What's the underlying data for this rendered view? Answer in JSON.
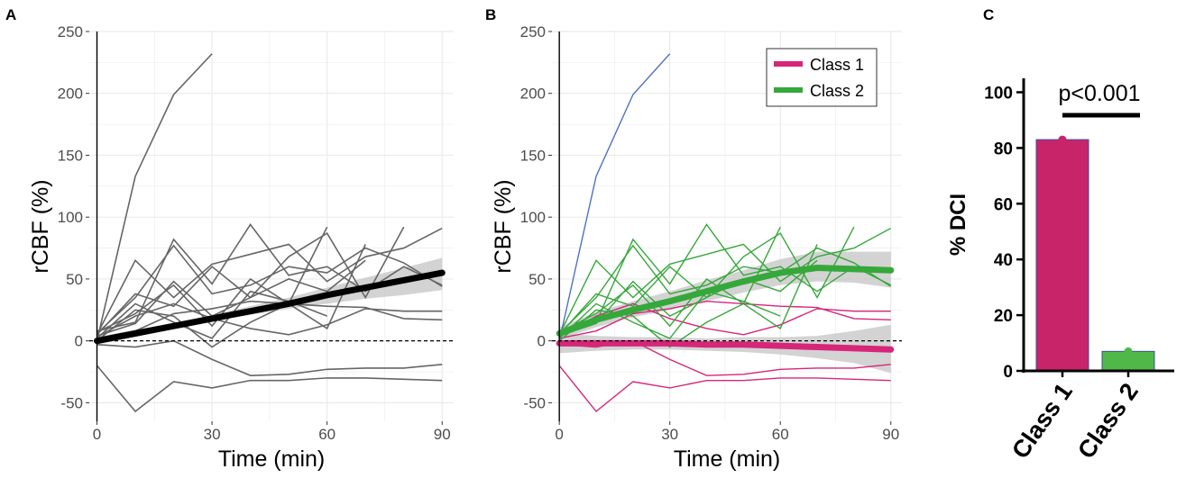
{
  "colors": {
    "grey_line": "#666666",
    "trend_black": "#000000",
    "class1": "#d6267a",
    "class2": "#35a83a",
    "outlier_blue": "#4f72c4",
    "ribbon": "#c8c8c8",
    "grid": "#ebebeb",
    "bar_class1": "#c8246a",
    "bar_class2": "#4fb848"
  },
  "chart_data": [
    {
      "panel": "A",
      "type": "line",
      "xlabel": "Time (min)",
      "ylabel": "rCBF (%)",
      "xlim": [
        -2,
        93
      ],
      "ylim": [
        -65,
        250
      ],
      "xticks": [
        0,
        30,
        60,
        90
      ],
      "yticks": [
        -50,
        0,
        50,
        100,
        150,
        200,
        250
      ],
      "grid": true,
      "reference_line_y": 0,
      "individual_series": [
        {
          "x": [
            0,
            10,
            20,
            30
          ],
          "y": [
            0,
            133,
            199,
            232
          ]
        },
        {
          "x": [
            0,
            10,
            20,
            30,
            40,
            50,
            60,
            70,
            80,
            90
          ],
          "y": [
            -20,
            -57,
            -33,
            -38,
            -32,
            -32,
            -30,
            -30,
            -31,
            -32
          ]
        },
        {
          "x": [
            0,
            10,
            20,
            30,
            40,
            50,
            60,
            70,
            80,
            90
          ],
          "y": [
            -3,
            -5,
            0,
            -15,
            -28,
            -27,
            -23,
            -22,
            -22,
            -19
          ]
        },
        {
          "x": [
            0,
            10,
            20,
            30,
            40,
            50,
            60,
            70,
            80,
            90
          ],
          "y": [
            2,
            8,
            22,
            26,
            32,
            30,
            28,
            27,
            18,
            17
          ]
        },
        {
          "x": [
            0,
            10,
            20,
            30,
            40,
            50,
            60,
            70,
            80,
            90
          ],
          "y": [
            3,
            20,
            30,
            18,
            10,
            5,
            13,
            26,
            24,
            24
          ]
        },
        {
          "x": [
            0,
            10,
            20,
            30,
            40,
            50,
            60,
            70,
            80,
            90
          ],
          "y": [
            5,
            65,
            35,
            62,
            70,
            78,
            48,
            68,
            75,
            91
          ]
        },
        {
          "x": [
            0,
            10,
            20,
            30,
            40,
            50,
            60,
            70,
            80,
            90
          ],
          "y": [
            6,
            35,
            77,
            38,
            45,
            60,
            55,
            75,
            63,
            44
          ]
        },
        {
          "x": [
            0,
            10,
            20,
            30,
            40,
            50,
            60,
            70
          ],
          "y": [
            4,
            14,
            48,
            20,
            35,
            50,
            40,
            65
          ]
        },
        {
          "x": [
            0,
            10,
            20,
            30,
            40,
            50,
            60,
            70,
            80,
            90
          ],
          "y": [
            8,
            15,
            82,
            46,
            94,
            53,
            60,
            40,
            60,
            45
          ]
        },
        {
          "x": [
            0,
            10,
            20,
            30,
            40,
            50,
            60,
            70,
            80
          ],
          "y": [
            5,
            38,
            28,
            60,
            35,
            68,
            87,
            35,
            92
          ]
        },
        {
          "x": [
            0,
            10,
            20,
            30,
            40,
            50,
            60
          ],
          "y": [
            7,
            22,
            45,
            12,
            50,
            30,
            92
          ]
        },
        {
          "x": [
            0,
            10,
            20,
            30,
            40,
            50,
            60
          ],
          "y": [
            2,
            30,
            15,
            2,
            40,
            32,
            20
          ]
        },
        {
          "x": [
            0,
            10,
            20,
            30,
            40,
            50,
            60,
            70
          ],
          "y": [
            0,
            25,
            20,
            -5,
            15,
            30,
            10,
            78
          ]
        }
      ],
      "trend": {
        "x": [
          0,
          10,
          20,
          30,
          40,
          50,
          60,
          70,
          80,
          90
        ],
        "y": [
          0,
          6,
          12,
          18,
          24,
          30,
          37,
          43,
          49,
          55
        ],
        "ci_low": [
          -3,
          3,
          10,
          16,
          21,
          26,
          30,
          34,
          37,
          41
        ],
        "ci_high": [
          3,
          9,
          14,
          21,
          28,
          35,
          43,
          51,
          59,
          67
        ]
      }
    },
    {
      "panel": "B",
      "type": "line",
      "xlabel": "Time (min)",
      "ylabel": "rCBF (%)",
      "xlim": [
        -2,
        93
      ],
      "ylim": [
        -65,
        250
      ],
      "xticks": [
        0,
        30,
        60,
        90
      ],
      "yticks": [
        -50,
        0,
        50,
        100,
        150,
        200,
        250
      ],
      "grid": true,
      "reference_line_y": 0,
      "legend": {
        "position": "top-right",
        "entries": [
          "Class 1",
          "Class 2"
        ]
      },
      "outlier_series": {
        "x": [
          0,
          10,
          20,
          30
        ],
        "y": [
          0,
          133,
          199,
          232
        ]
      },
      "class1_series": [
        {
          "x": [
            0,
            10,
            20,
            30,
            40,
            50,
            60,
            70,
            80,
            90
          ],
          "y": [
            -20,
            -57,
            -33,
            -38,
            -32,
            -32,
            -30,
            -30,
            -31,
            -32
          ]
        },
        {
          "x": [
            0,
            10,
            20,
            30,
            40,
            50,
            60,
            70,
            80,
            90
          ],
          "y": [
            -3,
            -5,
            0,
            -15,
            -28,
            -27,
            -23,
            -22,
            -22,
            -19
          ]
        },
        {
          "x": [
            0,
            10,
            20,
            30,
            40,
            50,
            60,
            70,
            80,
            90
          ],
          "y": [
            2,
            8,
            22,
            26,
            32,
            30,
            28,
            27,
            18,
            17
          ]
        },
        {
          "x": [
            0,
            10,
            20,
            30,
            40,
            50,
            60,
            70,
            80,
            90
          ],
          "y": [
            3,
            20,
            30,
            18,
            10,
            5,
            13,
            26,
            24,
            24
          ]
        }
      ],
      "class2_series": [
        {
          "x": [
            0,
            10,
            20,
            30,
            40,
            50,
            60,
            70,
            80,
            90
          ],
          "y": [
            5,
            65,
            35,
            62,
            70,
            78,
            48,
            68,
            75,
            91
          ]
        },
        {
          "x": [
            0,
            10,
            20,
            30,
            40,
            50,
            60,
            70,
            80,
            90
          ],
          "y": [
            6,
            35,
            77,
            38,
            45,
            60,
            55,
            75,
            63,
            44
          ]
        },
        {
          "x": [
            0,
            10,
            20,
            30,
            40,
            50,
            60,
            70
          ],
          "y": [
            4,
            14,
            48,
            20,
            35,
            50,
            40,
            65
          ]
        },
        {
          "x": [
            0,
            10,
            20,
            30,
            40,
            50,
            60,
            70,
            80,
            90
          ],
          "y": [
            8,
            15,
            82,
            46,
            94,
            53,
            60,
            40,
            60,
            45
          ]
        },
        {
          "x": [
            0,
            10,
            20,
            30,
            40,
            50,
            60,
            70,
            80
          ],
          "y": [
            5,
            38,
            28,
            60,
            35,
            68,
            87,
            35,
            92
          ]
        },
        {
          "x": [
            0,
            10,
            20,
            30,
            40,
            50,
            60
          ],
          "y": [
            7,
            22,
            45,
            12,
            50,
            30,
            92
          ]
        },
        {
          "x": [
            0,
            10,
            20,
            30,
            40,
            50,
            60
          ],
          "y": [
            2,
            30,
            15,
            2,
            40,
            32,
            20
          ]
        },
        {
          "x": [
            0,
            10,
            20,
            30,
            40,
            50,
            60,
            70
          ],
          "y": [
            0,
            25,
            20,
            -5,
            15,
            30,
            10,
            78
          ]
        }
      ],
      "class1_trend": {
        "x": [
          0,
          10,
          20,
          30,
          40,
          50,
          60,
          70,
          80,
          90
        ],
        "y": [
          -2,
          -2,
          -2,
          -2,
          -3,
          -3,
          -4,
          -5,
          -6,
          -7
        ],
        "ci_low": [
          -10,
          -8,
          -7,
          -7,
          -8,
          -9,
          -11,
          -14,
          -18,
          -26
        ],
        "ci_high": [
          6,
          4,
          3,
          3,
          2,
          3,
          3,
          4,
          8,
          13
        ]
      },
      "class2_trend": {
        "x": [
          0,
          10,
          20,
          30,
          40,
          50,
          60,
          70,
          80,
          90
        ],
        "y": [
          6,
          17,
          25,
          32,
          40,
          48,
          55,
          59,
          58,
          57
        ],
        "ci_low": [
          1,
          11,
          19,
          25,
          32,
          39,
          45,
          48,
          47,
          43
        ],
        "ci_high": [
          11,
          23,
          32,
          40,
          49,
          57,
          66,
          72,
          72,
          72
        ]
      }
    },
    {
      "panel": "C",
      "type": "bar",
      "categories": [
        "Class 1",
        "Class 2"
      ],
      "values": [
        83,
        7
      ],
      "ylabel": "% DCI",
      "ylim": [
        0,
        105
      ],
      "yticks": [
        0,
        20,
        40,
        60,
        80,
        100
      ],
      "annotation": "p<0.001"
    }
  ]
}
